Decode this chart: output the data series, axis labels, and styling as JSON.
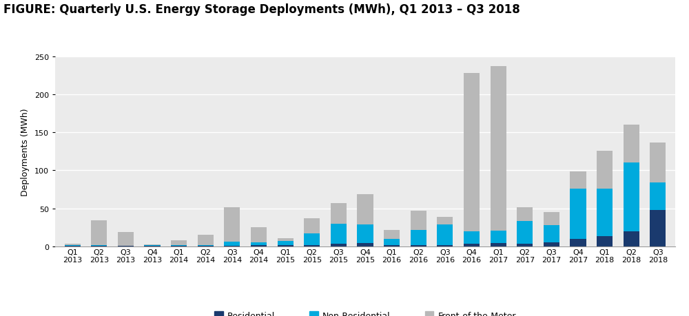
{
  "title": "FIGURE: Quarterly U.S. Energy Storage Deployments (MWh), Q1 2013 – Q3 2018",
  "ylabel": "Deployments (MWh)",
  "ylim": [
    0,
    250
  ],
  "yticks": [
    0,
    50,
    100,
    150,
    200,
    250
  ],
  "quarters": [
    "Q1\n2013",
    "Q2\n2013",
    "Q3\n2013",
    "Q4\n2013",
    "Q1\n2014",
    "Q2\n2014",
    "Q3\n2014",
    "Q4\n2014",
    "Q1\n2015",
    "Q2\n2015",
    "Q3\n2015",
    "Q4\n2015",
    "Q1\n2016",
    "Q2\n2016",
    "Q3\n2016",
    "Q4\n2016",
    "Q1\n2017",
    "Q2\n2017",
    "Q3\n2017",
    "Q4\n2017",
    "Q1\n2018",
    "Q2\n2018",
    "Q3\n2018"
  ],
  "residential": [
    1,
    1,
    0.5,
    1,
    1,
    1,
    1,
    2,
    2,
    2,
    3,
    4,
    2,
    2,
    2,
    3,
    4,
    3,
    5,
    10,
    13,
    20,
    48
  ],
  "non_residential": [
    1,
    1,
    0.5,
    0.5,
    1,
    1,
    5,
    3,
    5,
    15,
    27,
    25,
    8,
    20,
    27,
    17,
    17,
    30,
    23,
    66,
    63,
    90,
    36
  ],
  "front_of_meter": [
    1,
    32,
    18,
    1,
    6,
    13,
    45,
    20,
    4,
    20,
    27,
    40,
    12,
    25,
    10,
    208,
    216,
    18,
    17,
    23,
    50,
    50,
    53
  ],
  "color_residential": "#1a3a6e",
  "color_non_residential": "#00aadd",
  "color_front_of_meter": "#b8b8b8",
  "legend_labels": [
    "Residential",
    "Non-Residential",
    "Front-of-the-Meter"
  ],
  "plot_background_color": "#ebebeb",
  "fig_background_color": "#ffffff",
  "title_fontsize": 12,
  "axis_fontsize": 8,
  "bar_width": 0.6
}
